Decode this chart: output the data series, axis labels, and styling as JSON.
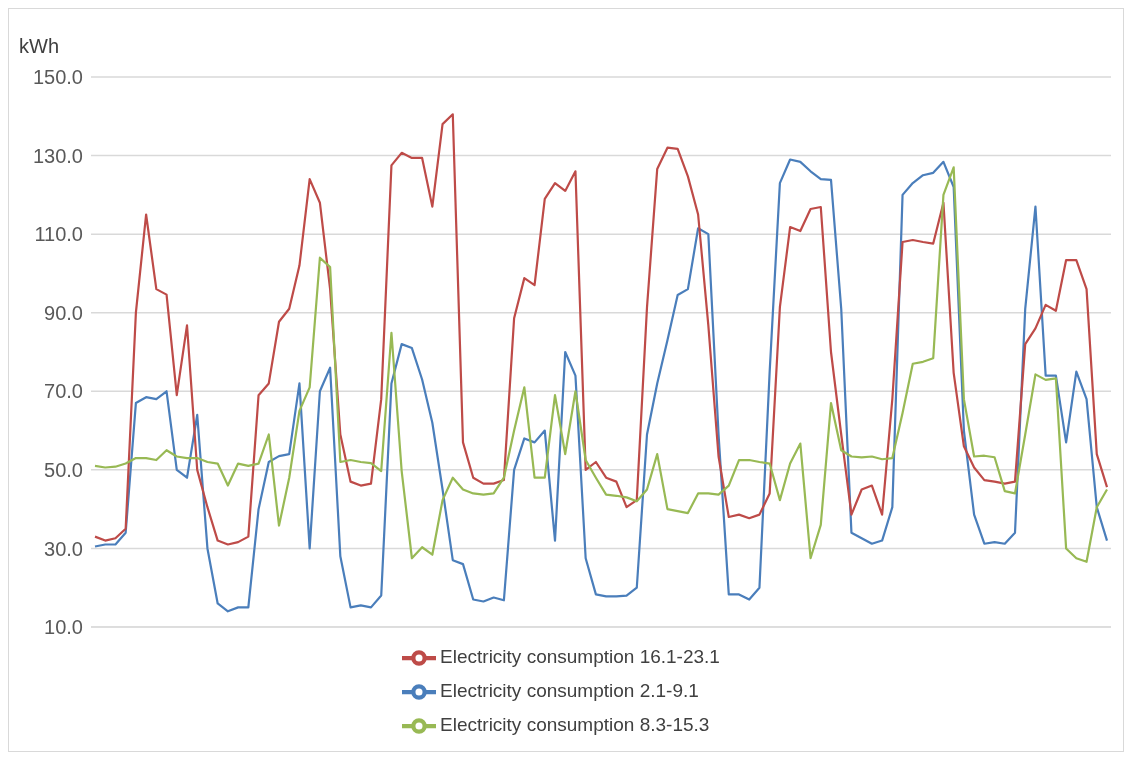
{
  "chart_data": {
    "type": "line",
    "ylabel": "kWh",
    "categories": [
      null,
      null,
      null,
      null,
      null,
      null,
      null,
      null,
      null,
      null,
      null,
      null,
      null,
      null,
      null,
      null,
      null,
      null,
      null,
      null,
      null,
      null,
      null,
      null,
      null,
      null,
      null,
      null,
      null,
      null,
      null,
      null,
      null,
      null,
      null,
      null,
      null,
      null,
      null,
      null,
      null,
      null,
      null,
      null,
      null,
      null,
      null,
      null,
      null,
      null,
      null,
      null,
      null,
      null,
      null,
      null,
      null,
      null,
      null,
      null,
      null,
      null,
      null,
      null,
      null,
      null,
      null,
      null,
      null,
      null,
      null,
      null,
      null,
      null,
      null,
      null,
      null,
      null,
      null,
      null,
      null,
      null,
      null,
      null,
      null,
      null,
      null,
      null,
      null,
      null,
      null,
      null,
      null,
      null,
      null,
      null,
      null,
      null,
      null,
      null
    ],
    "series": [
      {
        "name": "Electricity consumption 2.1-9.1",
        "color": "#4a7ebb",
        "values": [
          30.5,
          31,
          31,
          34,
          67,
          68.5,
          68,
          70,
          50,
          48,
          64,
          30,
          16,
          14,
          15,
          15,
          40,
          52,
          53.5,
          54,
          72,
          30,
          70,
          76,
          28,
          15,
          15.5,
          15,
          18,
          72,
          82,
          81,
          73,
          62,
          45,
          27,
          26,
          17,
          16.5,
          17.5,
          16.8,
          50,
          58,
          57,
          60,
          32,
          80,
          74,
          27.5,
          18.3,
          17.8,
          17.8,
          18,
          20,
          59,
          72,
          83,
          94.5,
          96,
          111.5,
          110,
          59,
          18.3,
          18.3,
          17,
          20,
          75,
          123,
          129,
          128.4,
          126,
          124,
          123.8,
          91,
          34,
          32.6,
          31.2,
          32,
          40.5,
          120,
          123,
          125,
          125.6,
          128.4,
          122,
          60,
          38.6,
          31.2,
          31.6,
          31.2,
          34,
          91,
          117,
          74,
          74,
          57,
          75,
          68,
          40.5,
          32
        ]
      },
      {
        "name": "Electricity consumption 16.1-23.1",
        "color": "#be4b48",
        "values": [
          33,
          32,
          32.6,
          35,
          90,
          115,
          96,
          94.6,
          69,
          86.8,
          50,
          40.5,
          32,
          31,
          31.6,
          33,
          69,
          72,
          87.7,
          91,
          102,
          124,
          118,
          96,
          59,
          47,
          46,
          46.5,
          68,
          127.5,
          130.7,
          129.4,
          129.4,
          117,
          138,
          140.5,
          57,
          48,
          46.5,
          46.5,
          47.4,
          88.6,
          98.8,
          97,
          119,
          123,
          121,
          126,
          50,
          52,
          48,
          47,
          40.5,
          42.3,
          91.4,
          126.6,
          132,
          131.7,
          124.7,
          115,
          86.8,
          53.4,
          38,
          38.6,
          37.7,
          38.6,
          44,
          91.4,
          111.8,
          110.8,
          116.4,
          116.9,
          80,
          59,
          38.6,
          45,
          46,
          38.6,
          68,
          108,
          108.5,
          108,
          107.6,
          118,
          74.7,
          56,
          50.6,
          47.4,
          47,
          46.5,
          47,
          82,
          86,
          92,
          90.5,
          103.4,
          103.4,
          96,
          54,
          45.6
        ]
      },
      {
        "name": "Electricity consumption 8.3-15.3",
        "color": "#98b954",
        "values": [
          51,
          50.6,
          50.8,
          51.6,
          53,
          53,
          52.5,
          55,
          53.4,
          53,
          53,
          52,
          51.6,
          46,
          51.6,
          51,
          51.6,
          59,
          35.8,
          48,
          65,
          71,
          104,
          101.6,
          52,
          52.5,
          52,
          51.7,
          49.7,
          84.9,
          49.7,
          27.5,
          30.3,
          28.4,
          42.3,
          48,
          45,
          44,
          43.7,
          44,
          48,
          60,
          71,
          48,
          48,
          69,
          54,
          70,
          52.5,
          48,
          43.7,
          43.4,
          43,
          42,
          45,
          54,
          40,
          39.5,
          39,
          44,
          44,
          43.7,
          46,
          52.5,
          52.5,
          52,
          51.6,
          42.3,
          51.6,
          56.7,
          27.5,
          36,
          67,
          55,
          53.4,
          53.2,
          53.4,
          52.7,
          53,
          64.5,
          77,
          77.5,
          78.4,
          120,
          127,
          68,
          53.4,
          53.6,
          53.2,
          44.6,
          44,
          59,
          74.3,
          72.9,
          73.3,
          30,
          27.5,
          26.6,
          40.5,
          45
        ]
      }
    ],
    "ylim": [
      10,
      150
    ],
    "yticks": [
      {
        "value": 10,
        "label": "10.0"
      },
      {
        "value": 30,
        "label": "30.0"
      },
      {
        "value": 50,
        "label": "50.0"
      },
      {
        "value": 70,
        "label": "70.0"
      },
      {
        "value": 90,
        "label": "90.0"
      },
      {
        "value": 110,
        "label": "110.0"
      },
      {
        "value": 130,
        "label": "130.0"
      },
      {
        "value": 150,
        "label": "150.0"
      }
    ],
    "grid": "y",
    "legend": "bottom",
    "marker": "none",
    "line_style": "solid"
  }
}
